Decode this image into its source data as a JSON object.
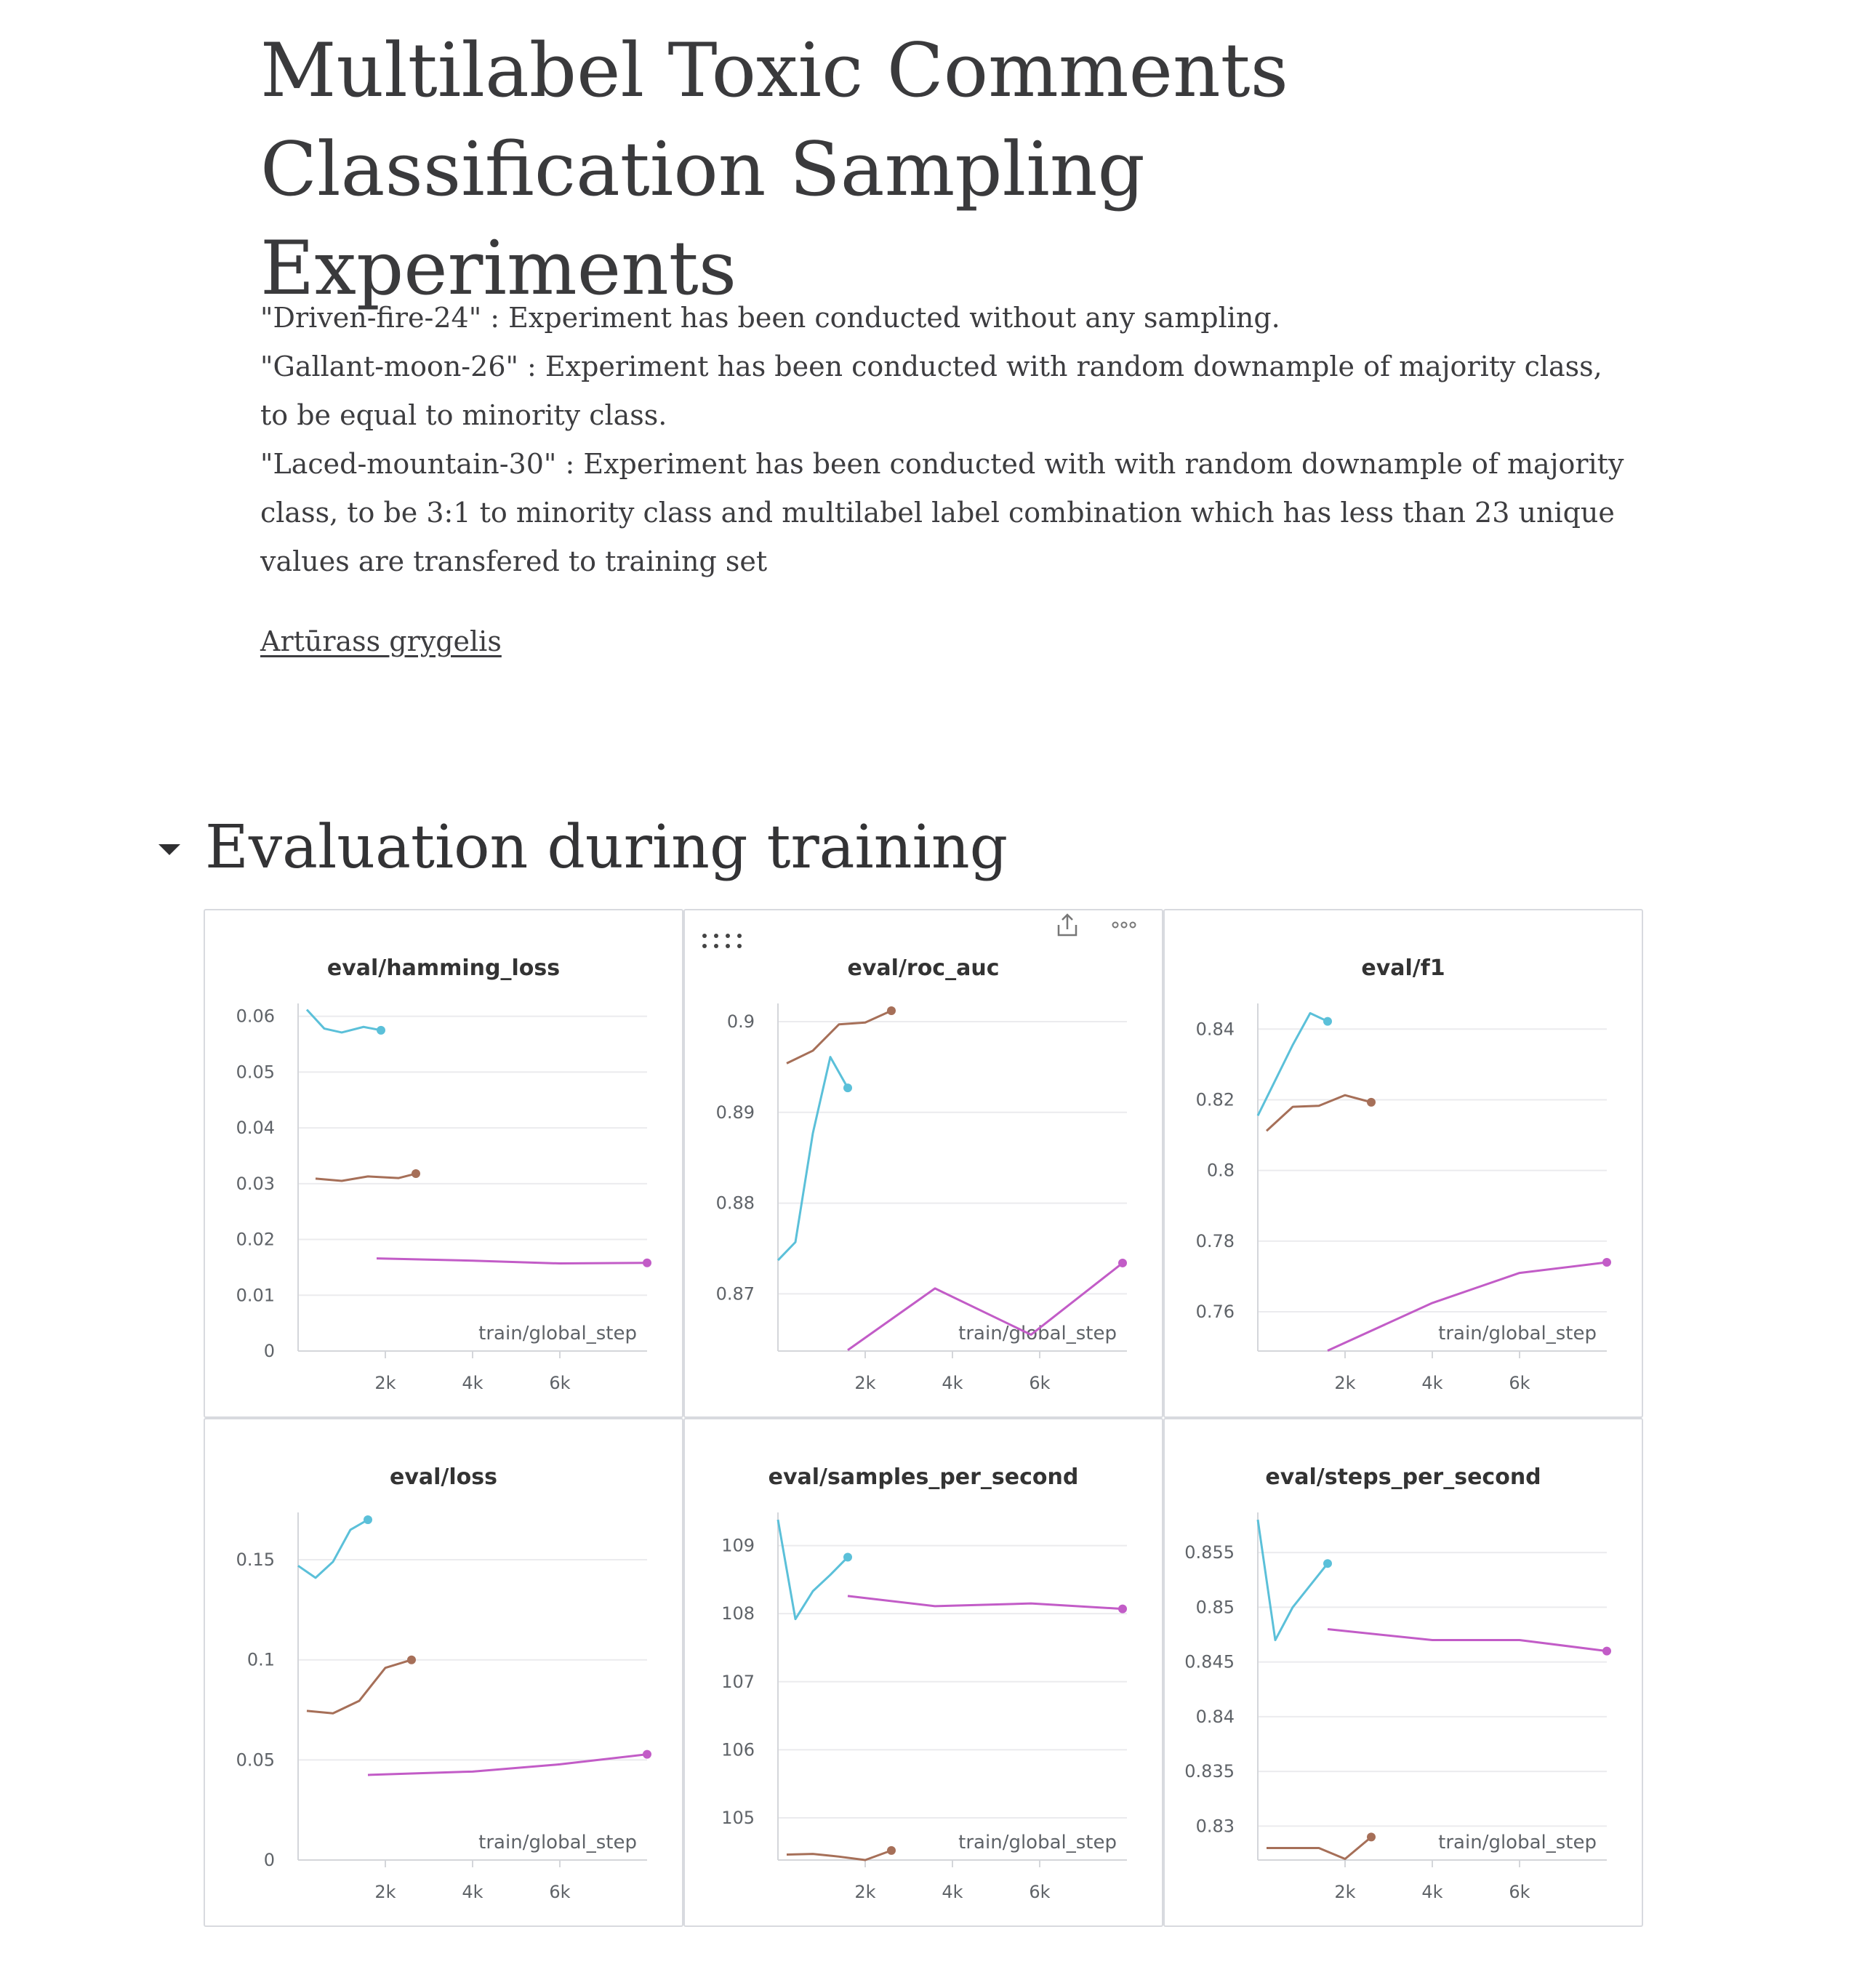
{
  "page": {
    "title_line1": "Multilabel Toxic Comments",
    "title_line2": "Classification Sampling Experiments",
    "description": [
      "\"Driven-fire-24\" : Experiment has been conducted without any sampling.",
      "\"Gallant-moon-26\" : Experiment has been conducted with random downample of majority class, to be equal to minority class.",
      "\"Laced-mountain-30\" : Experiment has been conducted with with random downample of majority class, to be 3:1 to minority class and multilabel label combination which has less than 23 unique values are transfered to training set"
    ],
    "author": "Artūrass grygelis",
    "section_title": "Evaluation during training"
  },
  "colors": {
    "cyan": "#5bc0d9",
    "brown": "#a66f58",
    "magenta": "#c25cc7"
  },
  "icons": [
    "drag-handle-icon",
    "share-icon",
    "more-options-icon",
    "caret-down-icon"
  ],
  "chart_data": [
    {
      "type": "line",
      "title": "eval/hamming_loss",
      "xlabel": "train/global_step",
      "xticks": [
        "2k",
        "4k",
        "6k"
      ],
      "xlim": [
        0,
        8000
      ],
      "yticks": [
        "0",
        "0.01",
        "0.02",
        "0.03",
        "0.04",
        "0.05",
        "0.06"
      ],
      "ylim": [
        0,
        0.061
      ],
      "grid": true,
      "series": [
        {
          "color": "cyan",
          "x": [
            200,
            600,
            1000,
            1500,
            1900
          ],
          "y": [
            0.0612,
            0.0578,
            0.0571,
            0.0581,
            0.0575
          ]
        },
        {
          "color": "brown",
          "x": [
            400,
            1000,
            1600,
            2300,
            2700
          ],
          "y": [
            0.0309,
            0.0305,
            0.0313,
            0.031,
            0.0318
          ]
        },
        {
          "color": "magenta",
          "x": [
            1800,
            4000,
            6000,
            8000
          ],
          "y": [
            0.0166,
            0.0162,
            0.0157,
            0.0158
          ]
        }
      ]
    },
    {
      "type": "line",
      "title": "eval/roc_auc",
      "xlabel": "train/global_step",
      "xticks": [
        "2k",
        "4k",
        "6k"
      ],
      "xlim": [
        0,
        8000
      ],
      "yticks": [
        "0.87",
        "0.88",
        "0.89",
        "0.9"
      ],
      "ylim": [
        0.8637,
        0.9012
      ],
      "grid": true,
      "series": [
        {
          "color": "cyan",
          "x": [
            0,
            400,
            800,
            1200,
            1600
          ],
          "y": [
            0.8737,
            0.8757,
            0.8877,
            0.8961,
            0.8927
          ]
        },
        {
          "color": "brown",
          "x": [
            200,
            800,
            1400,
            2000,
            2600
          ],
          "y": [
            0.8954,
            0.8968,
            0.8997,
            0.8999,
            0.9012
          ]
        },
        {
          "color": "magenta",
          "x": [
            1600,
            3600,
            5800,
            7900
          ],
          "y": [
            0.8638,
            0.8706,
            0.8655,
            0.8734
          ]
        }
      ]
    },
    {
      "type": "line",
      "title": "eval/f1",
      "xlabel": "train/global_step",
      "xticks": [
        "2k",
        "4k",
        "6k"
      ],
      "xlim": [
        0,
        8000
      ],
      "yticks": [
        "0.76",
        "0.78",
        "0.8",
        "0.82",
        "0.84"
      ],
      "ylim": [
        0.7489,
        0.8452
      ],
      "grid": true,
      "series": [
        {
          "color": "cyan",
          "x": [
            0,
            800,
            1200,
            1600
          ],
          "y": [
            0.8155,
            0.8355,
            0.8445,
            0.8422
          ]
        },
        {
          "color": "brown",
          "x": [
            200,
            800,
            1400,
            2000,
            2600
          ],
          "y": [
            0.8112,
            0.818,
            0.8183,
            0.8213,
            0.8193
          ]
        },
        {
          "color": "magenta",
          "x": [
            1600,
            4000,
            6000,
            8000
          ],
          "y": [
            0.749,
            0.7625,
            0.771,
            0.774
          ]
        }
      ]
    },
    {
      "type": "line",
      "title": "eval/loss",
      "xlabel": "train/global_step",
      "xticks": [
        "2k",
        "4k",
        "6k"
      ],
      "xlim": [
        0,
        8000
      ],
      "yticks": [
        "0",
        "0.05",
        "0.1",
        "0.15"
      ],
      "ylim": [
        0,
        0.17
      ],
      "grid": true,
      "series": [
        {
          "color": "cyan",
          "x": [
            0,
            400,
            800,
            1200,
            1600
          ],
          "y": [
            0.147,
            0.141,
            0.149,
            0.165,
            0.17
          ]
        },
        {
          "color": "brown",
          "x": [
            200,
            800,
            1400,
            2000,
            2600
          ],
          "y": [
            0.0745,
            0.0733,
            0.0795,
            0.096,
            0.1
          ]
        },
        {
          "color": "magenta",
          "x": [
            1600,
            4000,
            6000,
            8000
          ],
          "y": [
            0.0425,
            0.0442,
            0.0478,
            0.0528
          ]
        }
      ]
    },
    {
      "type": "line",
      "title": "eval/samples_per_second",
      "xlabel": "train/global_step",
      "xticks": [
        "2k",
        "4k",
        "6k"
      ],
      "xlim": [
        0,
        8000
      ],
      "yticks": [
        "105",
        "106",
        "107",
        "108",
        "109"
      ],
      "ylim": [
        104.38,
        109.38
      ],
      "grid": true,
      "series": [
        {
          "color": "cyan",
          "x": [
            0,
            400,
            800,
            1200,
            1600
          ],
          "y": [
            109.38,
            107.92,
            108.33,
            108.57,
            108.83
          ]
        },
        {
          "color": "brown",
          "x": [
            200,
            800,
            1400,
            2000,
            2600
          ],
          "y": [
            104.46,
            104.47,
            104.43,
            104.38,
            104.52
          ]
        },
        {
          "color": "magenta",
          "x": [
            1600,
            3600,
            5800,
            7900
          ],
          "y": [
            108.26,
            108.11,
            108.15,
            108.07
          ]
        }
      ]
    },
    {
      "type": "line",
      "title": "eval/steps_per_second",
      "xlabel": "train/global_step",
      "xticks": [
        "2k",
        "4k",
        "6k"
      ],
      "xlim": [
        0,
        8000
      ],
      "yticks": [
        "0.83",
        "0.835",
        "0.84",
        "0.845",
        "0.85",
        "0.855"
      ],
      "ylim": [
        0.8269,
        0.858
      ],
      "grid": true,
      "series": [
        {
          "color": "cyan",
          "x": [
            0,
            400,
            800,
            1200,
            1600
          ],
          "y": [
            0.858,
            0.847,
            0.85,
            0.852,
            0.854
          ]
        },
        {
          "color": "brown",
          "x": [
            200,
            800,
            1400,
            2000,
            2600
          ],
          "y": [
            0.828,
            0.828,
            0.828,
            0.827,
            0.829
          ]
        },
        {
          "color": "magenta",
          "x": [
            1600,
            4000,
            6000,
            8000
          ],
          "y": [
            0.848,
            0.847,
            0.847,
            0.846
          ]
        }
      ]
    }
  ]
}
